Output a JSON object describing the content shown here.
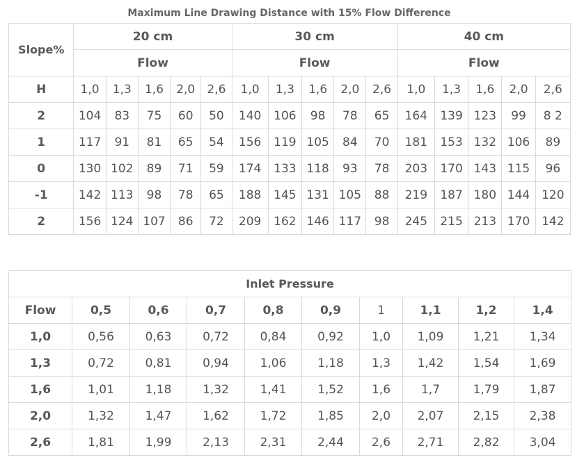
{
  "title": "Maximum Line Drawing Distance with 15% Flow Difference",
  "table1": {
    "slope_header": "Slope%",
    "groups": [
      {
        "size": "20 cm",
        "flow_label": "Flow"
      },
      {
        "size": "30 cm",
        "flow_label": "Flow"
      },
      {
        "size": "40 cm",
        "flow_label": "Flow"
      }
    ],
    "h_row": {
      "label": "H",
      "cells": [
        "1,0",
        "1,3",
        "1,6",
        "2,0",
        "2,6",
        "1,0",
        "1,3",
        "1,6",
        "2,0",
        "2,6",
        "1,0",
        "1,3",
        "1,6",
        "2,0",
        "2,6"
      ]
    },
    "rows": [
      {
        "label": "2",
        "cells": [
          "104",
          "83",
          "75",
          "60",
          "50",
          "140",
          "106",
          "98",
          "78",
          "65",
          "164",
          "139",
          "123",
          "99",
          "8 2"
        ]
      },
      {
        "label": "1",
        "cells": [
          "117",
          "91",
          "81",
          "65",
          "54",
          "156",
          "119",
          "105",
          "84",
          "70",
          "181",
          "153",
          "132",
          "106",
          "89"
        ]
      },
      {
        "label": "0",
        "cells": [
          "130",
          "102",
          "89",
          "71",
          "59",
          "174",
          "133",
          "118",
          "93",
          "78",
          "203",
          "170",
          "143",
          "115",
          "96"
        ]
      },
      {
        "label": "-1",
        "cells": [
          "142",
          "113",
          "98",
          "78",
          "65",
          "188",
          "145",
          "131",
          "105",
          "88",
          "219",
          "187",
          "180",
          "144",
          "120"
        ]
      },
      {
        "label": "2",
        "cells": [
          "156",
          "124",
          "107",
          "86",
          "72",
          "209",
          "162",
          "146",
          "117",
          "98",
          "245",
          "215",
          "213",
          "170",
          "142"
        ]
      }
    ]
  },
  "table2": {
    "header": "Inlet Pressure",
    "flow_header": "Flow",
    "columns": [
      "0,5",
      "0,6",
      "0,7",
      "0,8",
      "0,9",
      "1",
      "1,1",
      "1,2",
      "1,4"
    ],
    "rows": [
      {
        "label": "1,0",
        "cells": [
          "0,56",
          "0,63",
          "0,72",
          "0,84",
          "0,92",
          "1,0",
          "1,09",
          "1,21",
          "1,34"
        ]
      },
      {
        "label": "1,3",
        "cells": [
          "0,72",
          "0,81",
          "0,94",
          "1,06",
          "1,18",
          "1,3",
          "1,42",
          "1,54",
          "1,69"
        ]
      },
      {
        "label": "1,6",
        "cells": [
          "1,01",
          "1,18",
          "1,32",
          "1,41",
          "1,52",
          "1,6",
          "1,7",
          "1,79",
          "1,87"
        ]
      },
      {
        "label": "2,0",
        "cells": [
          "1,32",
          "1,47",
          "1,62",
          "1,72",
          "1,85",
          "2,0",
          "2,07",
          "2,15",
          "2,38"
        ]
      },
      {
        "label": "2,6",
        "cells": [
          "1,81",
          "1,99",
          "2,13",
          "2,31",
          "2,44",
          "2,6",
          "2,71",
          "2,82",
          "3,04"
        ]
      }
    ]
  }
}
